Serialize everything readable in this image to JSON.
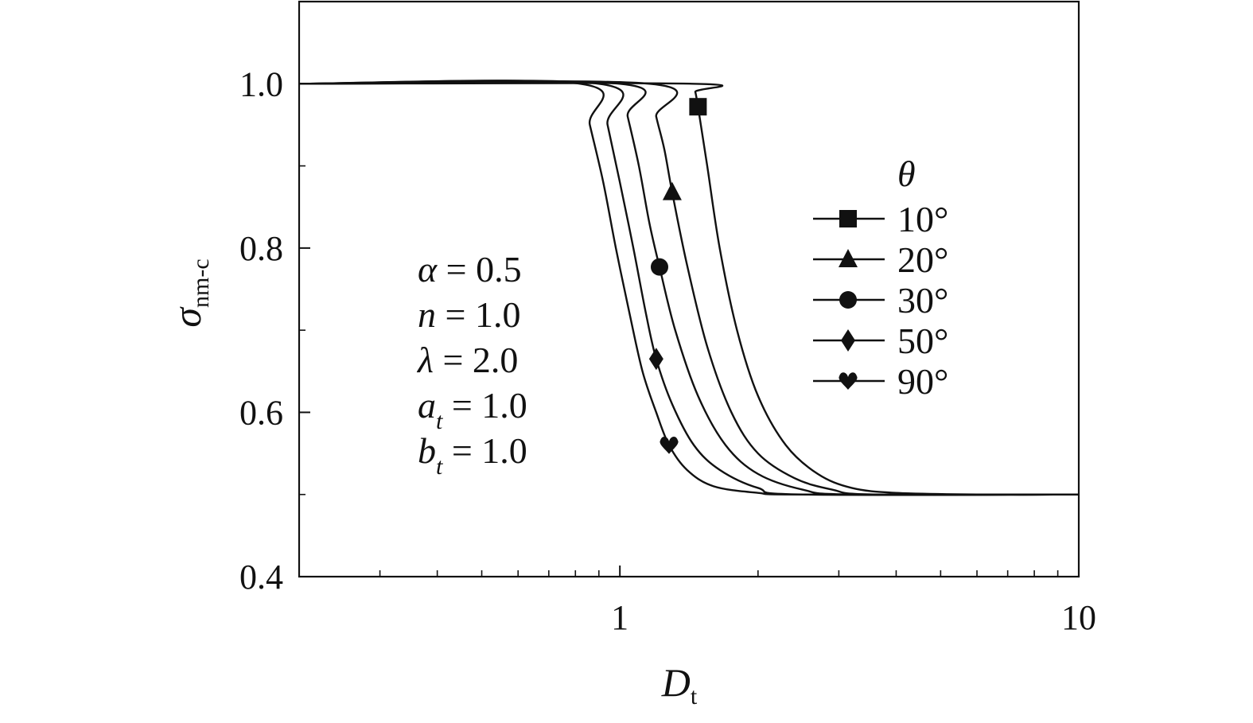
{
  "chart_data": {
    "type": "line",
    "xscale": "log",
    "xlim": [
      0.2,
      10
    ],
    "ylim": [
      0.4,
      1.1
    ],
    "xticks": [
      1,
      10
    ],
    "xtick_labels": [
      "1",
      "10"
    ],
    "yticks": [
      0.4,
      0.6,
      0.8,
      1.0
    ],
    "ytick_labels": [
      "0.4",
      "0.6",
      "0.8",
      "1.0"
    ],
    "xlabel": {
      "main": "D",
      "sub": "t"
    },
    "ylabel": {
      "main": "σ",
      "sub": "nm-c"
    },
    "grid": false,
    "legend": {
      "title": "θ",
      "placement": "upper-right"
    },
    "annotations": [
      {
        "lhs": "α",
        "sub": "",
        "rhs": " = 0.5"
      },
      {
        "lhs": "n",
        "sub": "",
        "rhs": " = 1.0"
      },
      {
        "lhs": "λ",
        "sub": "",
        "rhs": " = 2.0"
      },
      {
        "lhs": "a",
        "sub": "t",
        "rhs": " = 1.0"
      },
      {
        "lhs": "b",
        "sub": "t",
        "rhs": " = 1.0"
      }
    ],
    "series": [
      {
        "name": "10°",
        "marker": "square",
        "marker_point": [
          1.48,
          0.972
        ],
        "points": [
          [
            0.2,
            1.0
          ],
          [
            1.44,
            1.0
          ],
          [
            1.46,
            0.99
          ],
          [
            1.48,
            0.972
          ],
          [
            1.55,
            0.9
          ],
          [
            1.65,
            0.8
          ],
          [
            1.8,
            0.7
          ],
          [
            2.0,
            0.62
          ],
          [
            2.3,
            0.56
          ],
          [
            2.7,
            0.525
          ],
          [
            3.2,
            0.508
          ],
          [
            4.0,
            0.502
          ],
          [
            6.0,
            0.5
          ],
          [
            10,
            0.5
          ]
        ]
      },
      {
        "name": "20°",
        "marker": "triangle",
        "marker_point": [
          1.3,
          0.868
        ],
        "points": [
          [
            0.2,
            1.0
          ],
          [
            1.16,
            1.0
          ],
          [
            1.2,
            0.96
          ],
          [
            1.25,
            0.92
          ],
          [
            1.3,
            0.868
          ],
          [
            1.4,
            0.78
          ],
          [
            1.55,
            0.68
          ],
          [
            1.75,
            0.6
          ],
          [
            2.0,
            0.55
          ],
          [
            2.4,
            0.52
          ],
          [
            2.9,
            0.506
          ],
          [
            3.6,
            0.5
          ],
          [
            10,
            0.5
          ]
        ]
      },
      {
        "name": "30°",
        "marker": "circle",
        "marker_point": [
          1.22,
          0.777
        ],
        "points": [
          [
            0.2,
            1.0
          ],
          [
            1.0,
            1.0
          ],
          [
            1.04,
            0.96
          ],
          [
            1.1,
            0.9
          ],
          [
            1.16,
            0.83
          ],
          [
            1.22,
            0.777
          ],
          [
            1.32,
            0.7
          ],
          [
            1.48,
            0.62
          ],
          [
            1.7,
            0.56
          ],
          [
            2.0,
            0.525
          ],
          [
            2.5,
            0.506
          ],
          [
            3.2,
            0.5
          ],
          [
            10,
            0.5
          ]
        ]
      },
      {
        "name": "50°",
        "marker": "diamond",
        "marker_point": [
          1.2,
          0.665
        ],
        "points": [
          [
            0.2,
            1.0
          ],
          [
            0.9,
            1.0
          ],
          [
            0.94,
            0.95
          ],
          [
            1.0,
            0.88
          ],
          [
            1.07,
            0.8
          ],
          [
            1.14,
            0.72
          ],
          [
            1.2,
            0.665
          ],
          [
            1.3,
            0.61
          ],
          [
            1.45,
            0.56
          ],
          [
            1.65,
            0.53
          ],
          [
            2.0,
            0.508
          ],
          [
            2.5,
            0.5
          ],
          [
            10,
            0.5
          ]
        ]
      },
      {
        "name": "90°",
        "marker": "heart",
        "marker_point": [
          1.28,
          0.56
        ],
        "points": [
          [
            0.2,
            1.0
          ],
          [
            0.82,
            1.0
          ],
          [
            0.86,
            0.95
          ],
          [
            0.92,
            0.88
          ],
          [
            0.98,
            0.8
          ],
          [
            1.05,
            0.72
          ],
          [
            1.12,
            0.65
          ],
          [
            1.2,
            0.6
          ],
          [
            1.28,
            0.56
          ],
          [
            1.4,
            0.53
          ],
          [
            1.6,
            0.51
          ],
          [
            2.0,
            0.502
          ],
          [
            2.5,
            0.5
          ],
          [
            10,
            0.5
          ]
        ]
      }
    ]
  }
}
